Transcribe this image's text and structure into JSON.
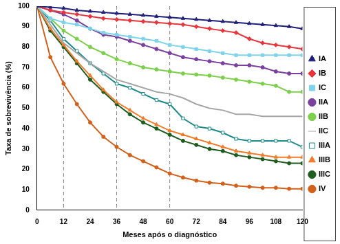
{
  "chart_data": {
    "type": "line",
    "x_label": "Meses após o diagnóstico",
    "y_label": "Taxa de sobrevivência (%)",
    "x": [
      0,
      6,
      12,
      18,
      24,
      30,
      36,
      42,
      48,
      54,
      60,
      66,
      72,
      78,
      84,
      90,
      96,
      102,
      108,
      114,
      120
    ],
    "xlim": [
      0,
      120
    ],
    "xticks": [
      0,
      12,
      24,
      36,
      48,
      60,
      72,
      84,
      96,
      108,
      120
    ],
    "ylim": [
      0,
      100
    ],
    "yticks": [
      0,
      10,
      20,
      30,
      40,
      50,
      60,
      70,
      80,
      90,
      100
    ],
    "vlines": [
      12,
      36,
      60
    ],
    "grid": false,
    "legend": "right",
    "series": [
      {
        "name": "IA",
        "color": "#1f1f7a",
        "marker": "triangle",
        "values": [
          100,
          99.5,
          99,
          98,
          97.5,
          97,
          96.5,
          96,
          95.5,
          95,
          94.5,
          94,
          93.5,
          93,
          92.5,
          92,
          91.5,
          91,
          90.5,
          90,
          89
        ]
      },
      {
        "name": "IB",
        "color": "#e8343a",
        "marker": "diamond",
        "values": [
          100,
          98,
          97,
          96,
          95,
          94,
          93.5,
          93,
          92.5,
          92,
          91.5,
          91,
          90,
          89,
          88,
          87,
          84,
          82,
          81,
          80,
          79
        ]
      },
      {
        "name": "IC",
        "color": "#7fd3ea",
        "marker": "square",
        "values": [
          100,
          94,
          92,
          91,
          89,
          87,
          86,
          85,
          84,
          83,
          81,
          80,
          79,
          78,
          77,
          76,
          76,
          76,
          76,
          76,
          76
        ]
      },
      {
        "name": "IIA",
        "color": "#7b3f9e",
        "marker": "circle",
        "values": [
          100,
          98,
          96,
          93,
          89,
          86,
          85,
          83,
          81,
          79,
          77,
          75,
          74,
          73,
          72,
          71,
          71,
          70,
          68,
          67,
          67
        ]
      },
      {
        "name": "IIB",
        "color": "#7ccf4a",
        "marker": "circle",
        "values": [
          100,
          94,
          88,
          84,
          80,
          77,
          74,
          72,
          70,
          69,
          68,
          67,
          66.5,
          66,
          65,
          64,
          63,
          62,
          61,
          58,
          58
        ]
      },
      {
        "name": "IIC",
        "color": "#a6a6a6",
        "marker": "none",
        "values": [
          100,
          91,
          82,
          77,
          72,
          68,
          64,
          62,
          60,
          58,
          57,
          55,
          52,
          50,
          49,
          47,
          47,
          46,
          46,
          46,
          46
        ]
      },
      {
        "name": "IIIA",
        "color": "#1f8a8a",
        "marker": "square-open",
        "values": [
          100,
          93,
          84,
          78,
          72,
          67,
          62,
          60,
          57,
          54,
          52,
          45,
          41,
          40,
          38,
          35,
          34,
          34,
          34,
          34,
          31
        ]
      },
      {
        "name": "IIIB",
        "color": "#f07b2a",
        "marker": "triangle",
        "values": [
          100,
          89,
          81,
          73,
          66,
          59,
          53,
          49,
          45,
          42,
          39,
          37,
          35,
          33,
          31,
          29,
          28,
          27,
          26,
          26,
          26
        ]
      },
      {
        "name": "IIIC",
        "color": "#1f5c1f",
        "marker": "circle",
        "values": [
          100,
          88,
          80,
          72,
          64,
          58,
          52,
          47,
          43,
          40,
          37,
          34,
          32,
          30,
          29,
          27,
          26,
          25,
          24,
          23,
          23
        ]
      },
      {
        "name": "IV",
        "color": "#d2601a",
        "marker": "circle",
        "values": [
          100,
          75,
          62,
          52,
          43,
          36,
          31,
          27,
          24,
          21,
          18,
          16,
          14.5,
          13.5,
          13,
          12,
          11.5,
          11,
          11,
          10.5,
          10.5
        ]
      }
    ]
  }
}
